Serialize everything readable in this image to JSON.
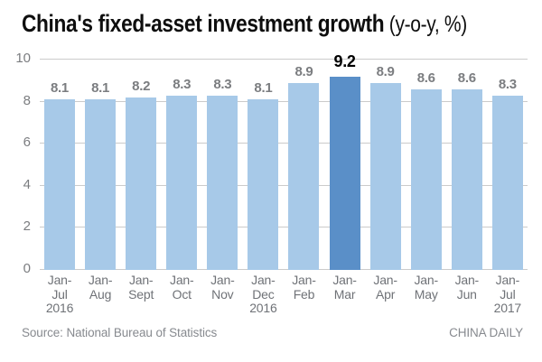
{
  "title": {
    "main": "China's fixed-asset investment growth",
    "unit": " (y-o-y, %)"
  },
  "footer": {
    "source": "Source: National Bureau of Statistics",
    "credit": "CHINA DAILY"
  },
  "colors": {
    "bar": "#a7c9e8",
    "bar_highlight": "#5a8fc8",
    "gridline": "#cbcbcb",
    "value_label": "#7b7d80",
    "value_label_highlight": "#000000",
    "axis_label": "#6f7277",
    "footer_text": "#878a8f"
  },
  "chart_data": {
    "type": "bar",
    "title": "China's fixed-asset investment growth (y-o-y, %)",
    "xlabel": "",
    "ylabel": "",
    "ylim": [
      0,
      10
    ],
    "yticks": [
      0,
      2,
      4,
      6,
      8,
      10
    ],
    "grid": true,
    "legend": "none",
    "categories": [
      [
        "Jan-",
        "Jul",
        "2016"
      ],
      [
        "Jan-",
        "Aug"
      ],
      [
        "Jan-",
        "Sept"
      ],
      [
        "Jan-",
        "Oct"
      ],
      [
        "Jan-",
        "Nov"
      ],
      [
        "Jan-",
        "Dec",
        "2016"
      ],
      [
        "Jan-",
        "Feb"
      ],
      [
        "Jan-",
        "Mar"
      ],
      [
        "Jan-",
        "Apr"
      ],
      [
        "Jan-",
        "May"
      ],
      [
        "Jan-",
        "Jun"
      ],
      [
        "Jan-",
        "Jul",
        "2017"
      ]
    ],
    "values": [
      8.1,
      8.1,
      8.2,
      8.3,
      8.3,
      8.1,
      8.9,
      9.2,
      8.9,
      8.6,
      8.6,
      8.3
    ],
    "highlight_index": 7,
    "value_decimals": 1
  }
}
